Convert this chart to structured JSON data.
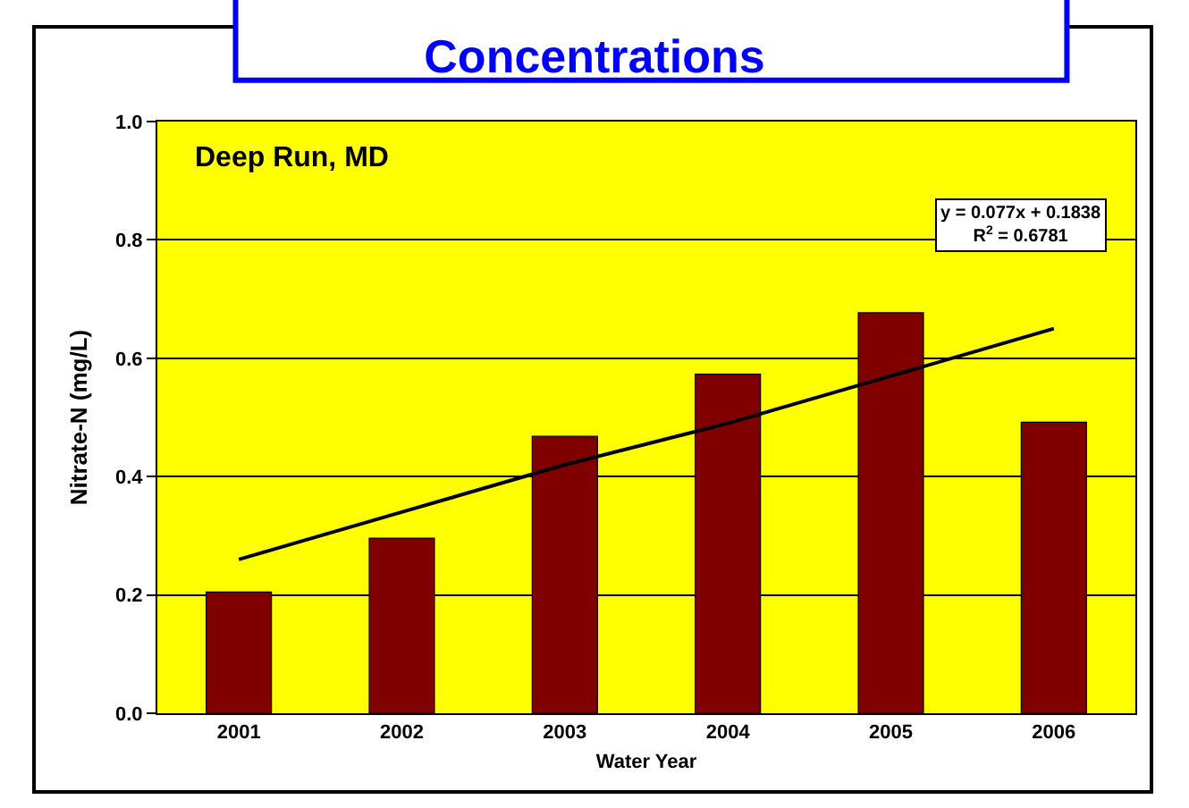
{
  "chart_data": {
    "type": "bar",
    "title": "Concentrations",
    "xlabel": "Water Year",
    "ylabel": "Nitrate-N (mg/L)",
    "categories": [
      "2001",
      "2002",
      "2003",
      "2004",
      "2005",
      "2006"
    ],
    "series": [
      {
        "color": "#800000",
        "values": [
          0.205,
          0.296,
          0.468,
          0.573,
          0.677,
          0.492
        ]
      },
      {
        "type": "line",
        "color": "#000000",
        "values": [
          0.26,
          0.34,
          0.42,
          0.49,
          0.57,
          0.65
        ]
      }
    ],
    "ylim": [
      0,
      1
    ],
    "yticks": [
      {
        "value": 0,
        "label": "0.0"
      },
      0.2,
      0.4,
      0.6,
      0.8,
      {
        "value": 1,
        "label": "1.0"
      }
    ],
    "grid": "y",
    "legend": false,
    "annotations": [
      "Deep Run, MD",
      "y = 0.077x + 0.1838\nR$^{2}$ = 0.6781"
    ]
  }
}
